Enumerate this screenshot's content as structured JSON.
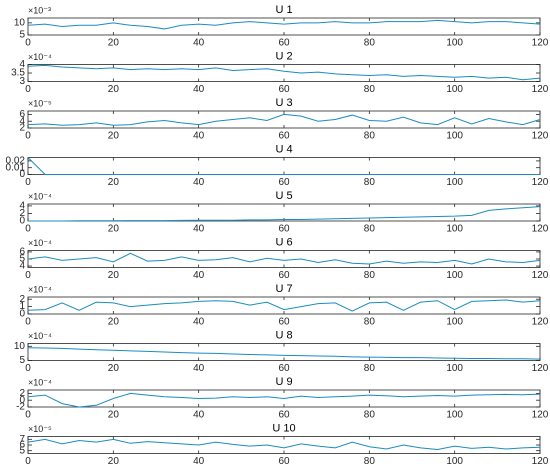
{
  "chart_data": [
    {
      "type": "line",
      "title": "U 1",
      "y_exponent": "×10⁻³",
      "color": "#1a8dbf",
      "xlim": [
        0,
        120
      ],
      "xticks": [
        0,
        20,
        40,
        60,
        80,
        100,
        120
      ],
      "ylim": [
        5,
        12
      ],
      "yticks": [
        5,
        10
      ],
      "x": [
        0,
        4,
        8,
        12,
        16,
        20,
        24,
        28,
        32,
        36,
        40,
        44,
        48,
        52,
        56,
        60,
        64,
        68,
        72,
        76,
        80,
        84,
        88,
        92,
        96,
        100,
        104,
        108,
        112,
        116,
        120
      ],
      "values": [
        9,
        9.5,
        8.5,
        9,
        9,
        10,
        9,
        8.5,
        7.5,
        9,
        9.5,
        9,
        10,
        10.5,
        10,
        9.5,
        10,
        10,
        10.5,
        10,
        10,
        10.5,
        10.5,
        10.5,
        11,
        10.5,
        10,
        10.5,
        10.5,
        10,
        9.5
      ]
    },
    {
      "type": "line",
      "title": "U 2",
      "y_exponent": "×10⁻⁴",
      "color": "#1a8dbf",
      "xlim": [
        0,
        120
      ],
      "xticks": [
        0,
        20,
        40,
        60,
        80,
        100,
        120
      ],
      "ylim": [
        3,
        4
      ],
      "yticks": [
        3,
        3.5,
        4
      ],
      "x": [
        0,
        4,
        8,
        12,
        16,
        20,
        24,
        28,
        32,
        36,
        40,
        44,
        48,
        52,
        56,
        60,
        64,
        68,
        72,
        76,
        80,
        84,
        88,
        92,
        96,
        100,
        104,
        108,
        112,
        116,
        120
      ],
      "values": [
        3.9,
        3.95,
        3.85,
        3.8,
        3.75,
        3.8,
        3.7,
        3.75,
        3.7,
        3.75,
        3.7,
        3.8,
        3.65,
        3.7,
        3.75,
        3.6,
        3.5,
        3.55,
        3.45,
        3.4,
        3.35,
        3.4,
        3.3,
        3.35,
        3.3,
        3.25,
        3.3,
        3.2,
        3.25,
        3.1,
        3.2
      ]
    },
    {
      "type": "line",
      "title": "U 3",
      "y_exponent": "×10⁻⁵",
      "color": "#1a8dbf",
      "xlim": [
        0,
        120
      ],
      "xticks": [
        0,
        20,
        40,
        60,
        80,
        100,
        120
      ],
      "ylim": [
        2,
        7
      ],
      "yticks": [
        2,
        4,
        6
      ],
      "x": [
        0,
        4,
        8,
        12,
        16,
        20,
        24,
        28,
        32,
        36,
        40,
        44,
        48,
        52,
        56,
        60,
        64,
        68,
        72,
        76,
        80,
        84,
        88,
        92,
        96,
        100,
        104,
        108,
        112,
        116,
        120
      ],
      "values": [
        3,
        3.2,
        2.8,
        3,
        3.5,
        2.8,
        3,
        3.8,
        4.2,
        3.5,
        3,
        4,
        4.5,
        5,
        4.2,
        6,
        5.5,
        4,
        4.5,
        5.8,
        4.2,
        4,
        5.2,
        3.5,
        3,
        5,
        3.2,
        4.8,
        3.8,
        3,
        4.5
      ]
    },
    {
      "type": "line",
      "title": "U 4",
      "color": "#1a8dbf",
      "xlim": [
        0,
        120
      ],
      "xticks": [
        0,
        20,
        40,
        60,
        80,
        100,
        120
      ],
      "ylim": [
        0,
        0.025
      ],
      "yticks": [
        0,
        0.01,
        0.02
      ],
      "x": [
        0,
        4,
        8,
        12,
        16,
        20,
        24,
        28,
        32,
        36,
        40,
        44,
        48,
        52,
        56,
        60,
        64,
        68,
        72,
        76,
        80,
        84,
        88,
        92,
        96,
        100,
        104,
        108,
        112,
        116,
        120
      ],
      "values": [
        0.025,
        0,
        0,
        0,
        0,
        0,
        0,
        0,
        0,
        0,
        0,
        0,
        0,
        0,
        0,
        0,
        0,
        0,
        0,
        0,
        0,
        0,
        0,
        0,
        0,
        0,
        0,
        0,
        0,
        0,
        0
      ]
    },
    {
      "type": "line",
      "title": "U 5",
      "y_exponent": "×10⁻⁴",
      "color": "#1a8dbf",
      "xlim": [
        0,
        120
      ],
      "xticks": [
        0,
        20,
        40,
        60,
        80,
        100,
        120
      ],
      "ylim": [
        0,
        4.5
      ],
      "yticks": [
        0,
        2,
        4
      ],
      "x": [
        0,
        4,
        8,
        12,
        16,
        20,
        24,
        28,
        32,
        36,
        40,
        44,
        48,
        52,
        56,
        60,
        64,
        68,
        72,
        76,
        80,
        84,
        88,
        92,
        96,
        100,
        104,
        108,
        112,
        116,
        120
      ],
      "values": [
        0,
        0,
        0,
        0.05,
        0.05,
        0.05,
        0.1,
        0.1,
        0.1,
        0.15,
        0.2,
        0.2,
        0.2,
        0.3,
        0.3,
        0.4,
        0.4,
        0.5,
        0.6,
        0.7,
        0.8,
        0.9,
        1,
        1.1,
        1.2,
        1.3,
        1.5,
        2.8,
        3.2,
        3.5,
        3.8
      ]
    },
    {
      "type": "line",
      "title": "U 6",
      "y_exponent": "×10⁻⁴",
      "color": "#1a8dbf",
      "xlim": [
        0,
        120
      ],
      "xticks": [
        0,
        20,
        40,
        60,
        80,
        100,
        120
      ],
      "ylim": [
        3.8,
        6.2
      ],
      "yticks": [
        4,
        5,
        6
      ],
      "x": [
        0,
        4,
        8,
        12,
        16,
        20,
        24,
        28,
        32,
        36,
        40,
        44,
        48,
        52,
        56,
        60,
        64,
        68,
        72,
        76,
        80,
        84,
        88,
        92,
        96,
        100,
        104,
        108,
        112,
        116,
        120
      ],
      "values": [
        5,
        5.3,
        4.8,
        5,
        5.2,
        4.6,
        5.8,
        4.7,
        4.8,
        5.3,
        4.8,
        4.9,
        5.2,
        4.6,
        5.1,
        4.8,
        5,
        4.5,
        4.9,
        4.4,
        4.3,
        4.7,
        4.4,
        4.6,
        4.5,
        4.8,
        4.3,
        5,
        4.6,
        4.5,
        4.8
      ]
    },
    {
      "type": "line",
      "title": "U 7",
      "y_exponent": "×10⁻⁴",
      "color": "#1a8dbf",
      "xlim": [
        0,
        120
      ],
      "xticks": [
        0,
        20,
        40,
        60,
        80,
        100,
        120
      ],
      "ylim": [
        0,
        2.3
      ],
      "yticks": [
        0,
        1,
        2
      ],
      "x": [
        0,
        4,
        8,
        12,
        16,
        20,
        24,
        28,
        32,
        36,
        40,
        44,
        48,
        52,
        56,
        60,
        64,
        68,
        72,
        76,
        80,
        84,
        88,
        92,
        96,
        100,
        104,
        108,
        112,
        116,
        120
      ],
      "values": [
        0.5,
        0.6,
        1.5,
        0.5,
        1.6,
        1.5,
        1,
        1.2,
        1.4,
        1.5,
        1.7,
        1.8,
        1.7,
        1.2,
        1.6,
        0.6,
        1,
        1.4,
        1.5,
        0.4,
        1.5,
        1.6,
        0.5,
        1.6,
        1.8,
        0.6,
        1.7,
        1.8,
        1.9,
        1.6,
        1.8
      ]
    },
    {
      "type": "line",
      "title": "U 8",
      "y_exponent": "×10⁻⁴",
      "color": "#1a8dbf",
      "xlim": [
        0,
        120
      ],
      "xticks": [
        0,
        20,
        40,
        60,
        80,
        100,
        120
      ],
      "ylim": [
        5,
        11
      ],
      "yticks": [
        5,
        10
      ],
      "x": [
        0,
        4,
        8,
        12,
        16,
        20,
        24,
        28,
        32,
        36,
        40,
        44,
        48,
        52,
        56,
        60,
        64,
        68,
        72,
        76,
        80,
        84,
        88,
        92,
        96,
        100,
        104,
        108,
        112,
        116,
        120
      ],
      "values": [
        9.5,
        9.4,
        9.3,
        9,
        8.8,
        8.6,
        8.4,
        8.2,
        8,
        7.8,
        7.6,
        7.5,
        7.3,
        7.1,
        7,
        6.8,
        6.7,
        6.6,
        6.5,
        6.3,
        6.2,
        6.1,
        6,
        6,
        5.9,
        5.8,
        5.7,
        5.7,
        5.6,
        5.6,
        5.5
      ]
    },
    {
      "type": "line",
      "title": "U 9",
      "y_exponent": "×10⁻⁴",
      "color": "#1a8dbf",
      "xlim": [
        0,
        120
      ],
      "xticks": [
        0,
        20,
        40,
        60,
        80,
        100,
        120
      ],
      "ylim": [
        -2,
        3
      ],
      "yticks": [
        -2,
        0,
        2
      ],
      "x": [
        0,
        4,
        8,
        12,
        16,
        20,
        24,
        28,
        32,
        36,
        40,
        44,
        48,
        52,
        56,
        60,
        64,
        68,
        72,
        76,
        80,
        84,
        88,
        92,
        96,
        100,
        104,
        108,
        112,
        116,
        120
      ],
      "values": [
        1,
        1.5,
        -1,
        -2,
        -1.5,
        0.5,
        2,
        1.5,
        1,
        0.8,
        0.5,
        0.6,
        1,
        0.8,
        1,
        0.5,
        1.2,
        0.8,
        1,
        1.2,
        1.5,
        1.3,
        1,
        1.2,
        1.4,
        1.2,
        1.5,
        1.6,
        1.7,
        1.6,
        1.8
      ]
    },
    {
      "type": "line",
      "title": "U 10",
      "y_exponent": "×10⁻⁵",
      "color": "#1a8dbf",
      "xlim": [
        0,
        120
      ],
      "xticks": [
        0,
        20,
        40,
        60,
        80,
        100,
        120
      ],
      "ylim": [
        4.5,
        7.5
      ],
      "yticks": [
        5,
        6,
        7
      ],
      "x": [
        0,
        4,
        8,
        12,
        16,
        20,
        24,
        28,
        32,
        36,
        40,
        44,
        48,
        52,
        56,
        60,
        64,
        68,
        72,
        76,
        80,
        84,
        88,
        92,
        96,
        100,
        104,
        108,
        112,
        116,
        120
      ],
      "values": [
        6.5,
        7,
        6.2,
        6.8,
        6.5,
        7,
        6.3,
        6.6,
        6.4,
        6.2,
        6,
        6.5,
        6.1,
        5.8,
        6,
        5.5,
        6.2,
        5.8,
        5.5,
        6.5,
        5.7,
        5.3,
        6,
        5.5,
        5.2,
        5.8,
        5.4,
        5.6,
        5.3,
        5.5,
        5.6
      ]
    }
  ]
}
